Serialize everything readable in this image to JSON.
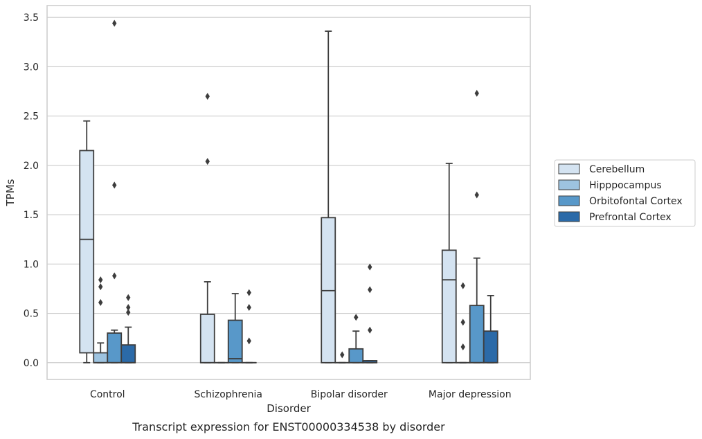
{
  "chart_data": {
    "type": "box",
    "caption": "Transcript expression for ENST00000334538 by disorder",
    "xlabel": "Disorder",
    "ylabel": "TPMs",
    "ylim": [
      -0.17,
      3.62
    ],
    "yticks": [
      "0.0",
      "0.5",
      "1.0",
      "1.5",
      "2.0",
      "2.5",
      "3.0",
      "3.5"
    ],
    "grid": true,
    "legend_position": "right",
    "categories": [
      "Control",
      "Schizophrenia",
      "Bipolar disorder",
      "Major depression"
    ],
    "series": [
      {
        "name": "Cerebellum",
        "color": "#d4e3f1",
        "boxes": [
          {
            "whisker_low": 0.0,
            "q1": 0.1,
            "median": 1.25,
            "q3": 2.15,
            "whisker_high": 2.45,
            "outliers": []
          },
          {
            "whisker_low": 0.0,
            "q1": 0.0,
            "median": 0.0,
            "q3": 0.49,
            "whisker_high": 0.82,
            "outliers": [
              2.04,
              2.7
            ]
          },
          {
            "whisker_low": 0.0,
            "q1": 0.0,
            "median": 0.73,
            "q3": 1.47,
            "whisker_high": 3.36,
            "outliers": []
          },
          {
            "whisker_low": 0.0,
            "q1": 0.0,
            "median": 0.84,
            "q3": 1.14,
            "whisker_high": 2.02,
            "outliers": []
          }
        ]
      },
      {
        "name": "Hipppocampus",
        "color": "#9dc3e0",
        "boxes": [
          {
            "whisker_low": 0.0,
            "q1": 0.0,
            "median": 0.0,
            "q3": 0.1,
            "whisker_high": 0.2,
            "outliers": [
              0.61,
              0.77,
              0.84
            ]
          },
          {
            "whisker_low": 0.0,
            "q1": 0.0,
            "median": 0.0,
            "q3": 0.0,
            "whisker_high": 0.0,
            "outliers": []
          },
          {
            "whisker_low": 0.0,
            "q1": 0.0,
            "median": 0.0,
            "q3": 0.0,
            "whisker_high": 0.0,
            "outliers": [
              0.08
            ]
          },
          {
            "whisker_low": 0.0,
            "q1": 0.0,
            "median": 0.0,
            "q3": 0.0,
            "whisker_high": 0.0,
            "outliers": [
              0.16,
              0.41,
              0.78
            ]
          }
        ]
      },
      {
        "name": "Orbitofontal Cortex",
        "color": "#5898c9",
        "boxes": [
          {
            "whisker_low": 0.0,
            "q1": 0.0,
            "median": 0.0,
            "q3": 0.3,
            "whisker_high": 0.33,
            "outliers": [
              0.88,
              1.8,
              3.44
            ]
          },
          {
            "whisker_low": 0.0,
            "q1": 0.0,
            "median": 0.04,
            "q3": 0.43,
            "whisker_high": 0.7,
            "outliers": []
          },
          {
            "whisker_low": 0.0,
            "q1": 0.0,
            "median": 0.0,
            "q3": 0.14,
            "whisker_high": 0.32,
            "outliers": [
              0.46
            ]
          },
          {
            "whisker_low": 0.0,
            "q1": 0.0,
            "median": 0.0,
            "q3": 0.58,
            "whisker_high": 1.06,
            "outliers": [
              1.7,
              2.73
            ]
          }
        ]
      },
      {
        "name": "Prefrontal Cortex",
        "color": "#2b6aa8",
        "boxes": [
          {
            "whisker_low": 0.0,
            "q1": 0.0,
            "median": 0.0,
            "q3": 0.18,
            "whisker_high": 0.36,
            "outliers": [
              0.51,
              0.56,
              0.66
            ]
          },
          {
            "whisker_low": 0.0,
            "q1": 0.0,
            "median": 0.0,
            "q3": 0.0,
            "whisker_high": 0.0,
            "outliers": [
              0.22,
              0.56,
              0.71
            ]
          },
          {
            "whisker_low": 0.0,
            "q1": 0.0,
            "median": 0.0,
            "q3": 0.02,
            "whisker_high": 0.02,
            "outliers": [
              0.33,
              0.74,
              0.97
            ]
          },
          {
            "whisker_low": 0.0,
            "q1": 0.0,
            "median": 0.0,
            "q3": 0.32,
            "whisker_high": 0.68,
            "outliers": []
          }
        ]
      }
    ]
  }
}
